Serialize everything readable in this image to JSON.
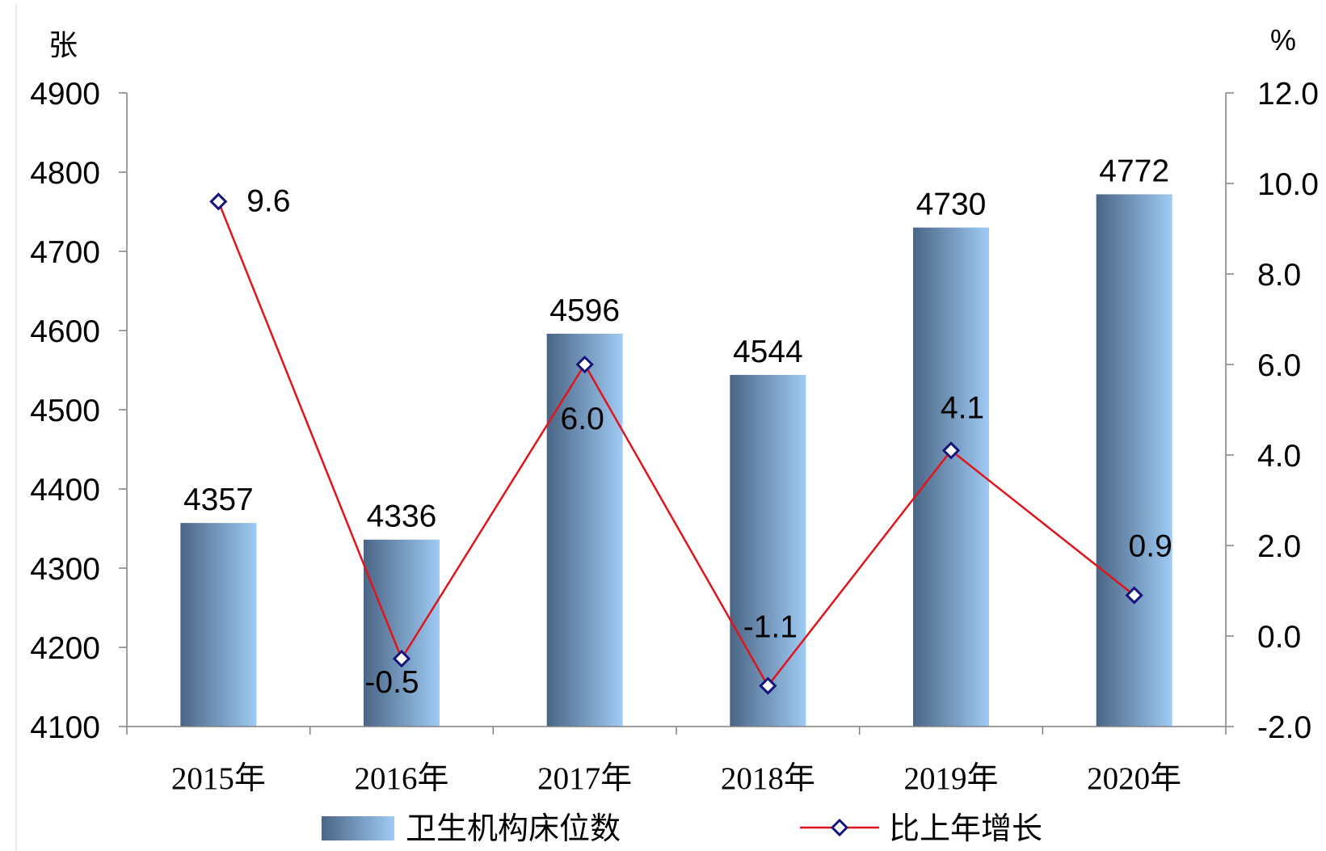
{
  "chart_data": {
    "type": "bar",
    "categories": [
      "2015年",
      "2016年",
      "2017年",
      "2018年",
      "2019年",
      "2020年"
    ],
    "series": [
      {
        "name": "卫生机构床位数",
        "type": "bar",
        "axis": "left",
        "values": [
          4357,
          4336,
          4596,
          4544,
          4730,
          4772
        ]
      },
      {
        "name": "比上年增长",
        "type": "line",
        "axis": "right",
        "values": [
          9.6,
          -0.5,
          6.0,
          -1.1,
          4.1,
          0.9
        ]
      }
    ],
    "y_left": {
      "unit": "张",
      "min": 4100,
      "max": 4900,
      "ticks": [
        "4100",
        "4200",
        "4300",
        "4400",
        "4500",
        "4600",
        "4700",
        "4800",
        "4900"
      ]
    },
    "y_right": {
      "unit": "%",
      "min": -2.0,
      "max": 12.0,
      "ticks": [
        "-2.0",
        "0.0",
        "2.0",
        "4.0",
        "6.0",
        "8.0",
        "10.0",
        "12.0"
      ]
    },
    "bar_labels": [
      "4357",
      "4336",
      "4596",
      "4544",
      "4730",
      "4772"
    ],
    "line_labels": [
      "9.6",
      "-0.5",
      "6.0",
      "-1.1",
      "4.1",
      "0.9"
    ],
    "legend": {
      "position": "bottom",
      "bar_label": "卫生机构床位数",
      "line_label": "比上年增长"
    },
    "colors": {
      "bar_dark": "#4a6585",
      "bar_light": "#9fcbf4",
      "line": "#e0141b",
      "marker": "#14147a"
    },
    "grid": false
  }
}
